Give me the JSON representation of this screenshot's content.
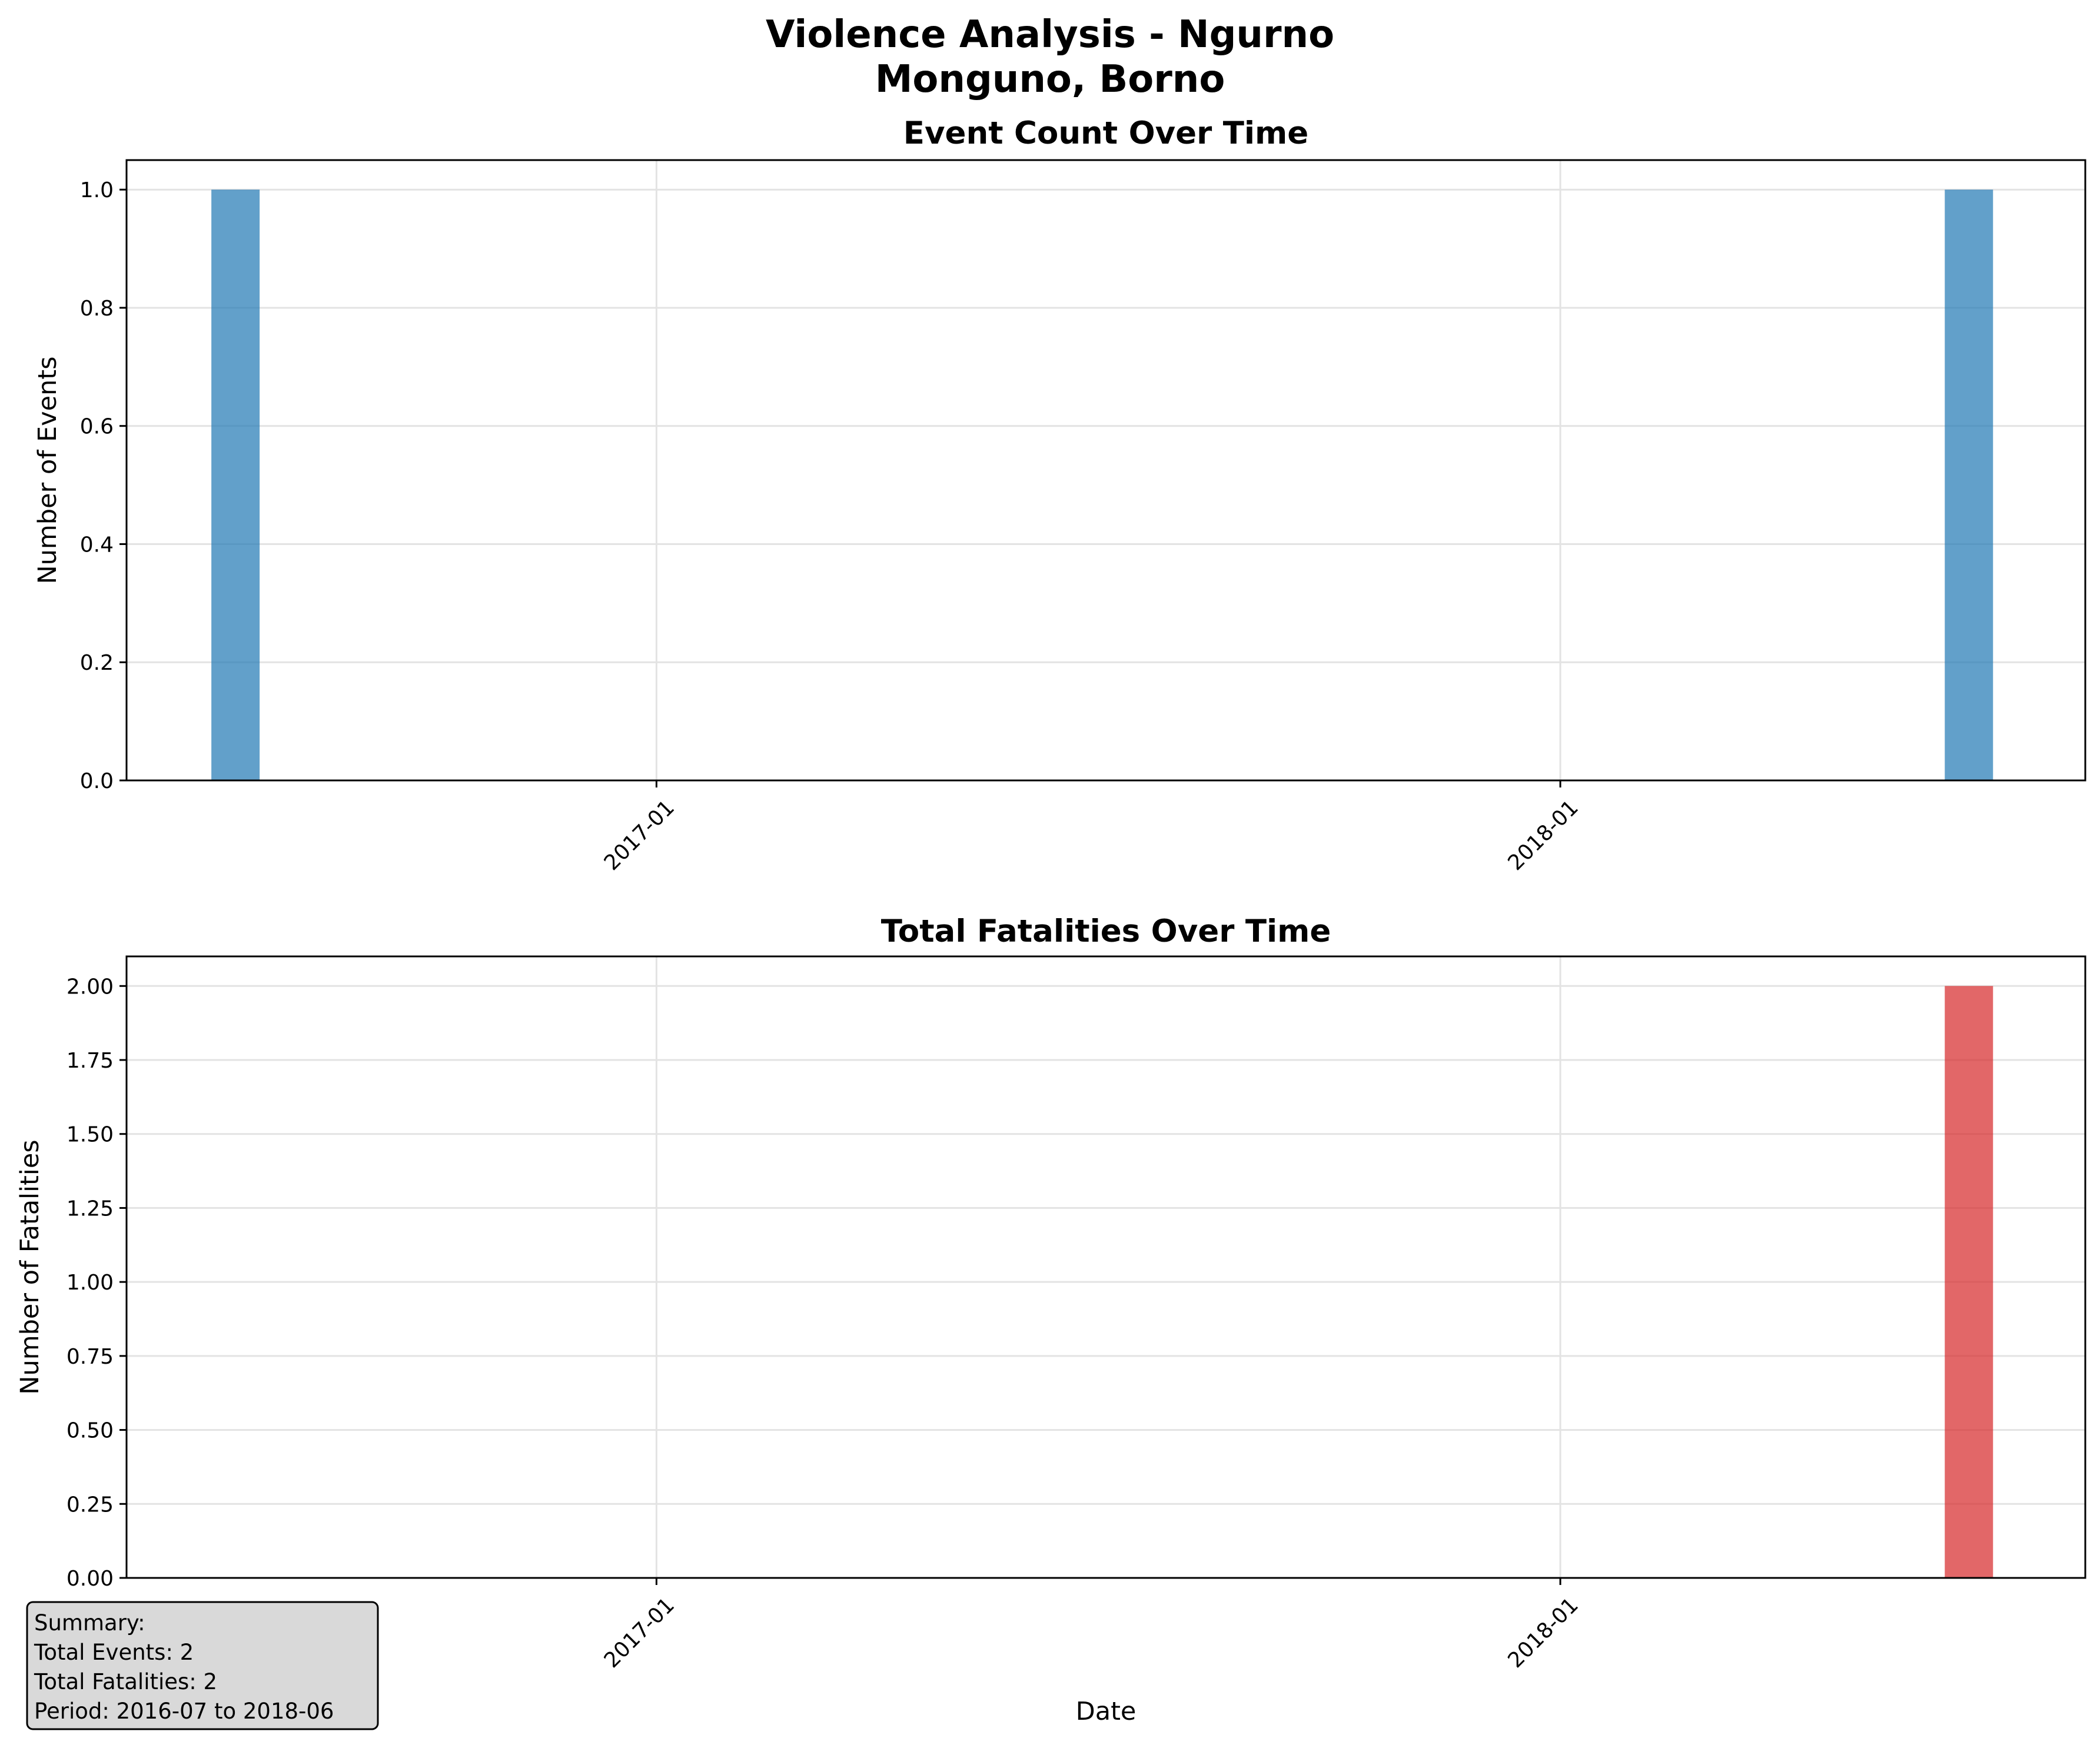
{
  "figure": {
    "title_line1": "Violence Analysis - Ngurno",
    "title_line2": "Monguno, Borno"
  },
  "chart_data": [
    {
      "type": "bar",
      "title": "Event Count Over Time",
      "xlabel": "",
      "ylabel": "Number of Events",
      "x_axis": "date",
      "xlim": [
        "2016-06-01",
        "2018-08-01"
      ],
      "xticks": [
        "2017-01",
        "2018-01"
      ],
      "ylim": [
        0,
        1.05
      ],
      "yticks": [
        "0.0",
        "0.2",
        "0.4",
        "0.6",
        "0.8",
        "1.0"
      ],
      "bar_color": "#1f77b4",
      "grid": true,
      "x": [
        "2016-07",
        "2018-06"
      ],
      "values": [
        1,
        1
      ]
    },
    {
      "type": "bar",
      "title": "Total Fatalities Over Time",
      "xlabel": "Date",
      "ylabel": "Number of Fatalities",
      "x_axis": "date",
      "xlim": [
        "2016-06-01",
        "2018-08-01"
      ],
      "xticks": [
        "2017-01",
        "2018-01"
      ],
      "ylim": [
        0,
        2.1
      ],
      "yticks": [
        "0.00",
        "0.25",
        "0.50",
        "0.75",
        "1.00",
        "1.25",
        "1.50",
        "1.75",
        "2.00"
      ],
      "bar_color": "#d62728",
      "grid": true,
      "x": [
        "2016-07",
        "2018-06"
      ],
      "values": [
        0,
        2
      ]
    }
  ],
  "summary": {
    "heading": "Summary:",
    "line1": "Total Events: 2",
    "line2": "Total Fatalities: 2",
    "line3": "Period: 2016-07 to 2018-06"
  }
}
